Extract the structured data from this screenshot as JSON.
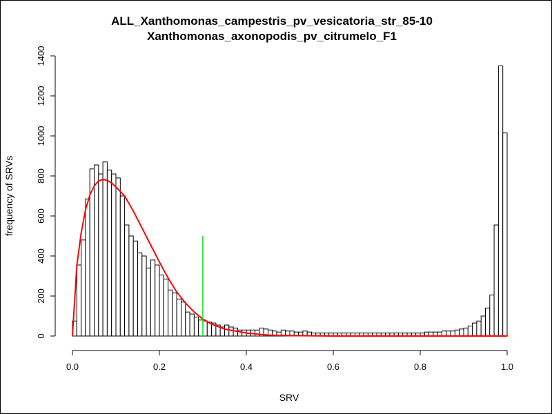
{
  "chart_data": {
    "type": "bar",
    "title": "ALL_Xanthomonas_campestris_pv_vesicatoria_str_85-10",
    "subtitle": "Xanthomonas_axonopodis_pv_citrumelo_F1",
    "xlabel": "SRV",
    "ylabel": "frequency of SRVs",
    "xlim": [
      0,
      1
    ],
    "ylim": [
      0,
      1400
    ],
    "x_ticks": [
      "0.0",
      "0.2",
      "0.4",
      "0.6",
      "0.8",
      "1.0"
    ],
    "y_ticks": [
      "0",
      "200",
      "400",
      "600",
      "800",
      "1000",
      "1200",
      "1400"
    ],
    "bin_width": 0.01,
    "bin_start": 0,
    "values": [
      75,
      355,
      480,
      685,
      835,
      855,
      810,
      870,
      830,
      810,
      790,
      700,
      555,
      500,
      475,
      415,
      400,
      340,
      380,
      355,
      305,
      285,
      230,
      215,
      185,
      170,
      120,
      110,
      95,
      80,
      75,
      70,
      65,
      55,
      45,
      55,
      45,
      40,
      30,
      30,
      30,
      30,
      30,
      40,
      35,
      30,
      25,
      20,
      30,
      25,
      25,
      20,
      20,
      25,
      20,
      15,
      15,
      15,
      15,
      15,
      15,
      15,
      15,
      15,
      15,
      15,
      15,
      15,
      15,
      15,
      15,
      15,
      15,
      15,
      15,
      15,
      15,
      15,
      15,
      15,
      15,
      20,
      20,
      20,
      20,
      25,
      25,
      25,
      30,
      35,
      40,
      50,
      65,
      75,
      100,
      140,
      205,
      555,
      1350,
      1015
    ],
    "bar_fill": "#ffffff",
    "bar_stroke": "#000000",
    "fit_curve": {
      "type": "gamma",
      "color": "#ff0000",
      "peak_x": 0.075,
      "peak_y": 780,
      "x": [
        0,
        0.01,
        0.02,
        0.03,
        0.04,
        0.05,
        0.06,
        0.07,
        0.08,
        0.09,
        0.1,
        0.12,
        0.14,
        0.16,
        0.18,
        0.2,
        0.22,
        0.24,
        0.26,
        0.28,
        0.3,
        0.32,
        0.35,
        0.4,
        0.45,
        0.5,
        0.6,
        0.8,
        1.0
      ],
      "y": [
        0,
        350,
        515,
        630,
        705,
        750,
        775,
        782,
        778,
        765,
        745,
        700,
        625,
        540,
        455,
        370,
        290,
        220,
        165,
        120,
        85,
        60,
        35,
        15,
        5,
        2,
        0,
        0,
        0
      ]
    },
    "threshold_line": {
      "x": 0.3,
      "y_top": 500,
      "color": "#00dd00"
    },
    "grid": false,
    "legend": "none"
  }
}
